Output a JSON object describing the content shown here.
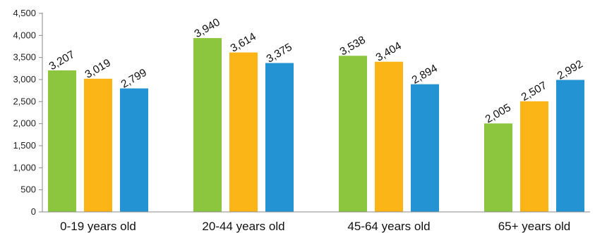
{
  "chart_data": {
    "type": "bar",
    "categories": [
      "0-19 years old",
      "20-44 years old",
      "45-64 years old",
      "65+ years old"
    ],
    "series": [
      {
        "values": [
          3207,
          3940,
          3538,
          2005
        ],
        "color": "#8cc63f"
      },
      {
        "values": [
          3019,
          3614,
          3404,
          2507
        ],
        "color": "#fbb516"
      },
      {
        "values": [
          2799,
          3375,
          2894,
          2992
        ],
        "color": "#2393d3"
      }
    ],
    "data_labels": [
      [
        "3,207",
        "3,940",
        "3,538",
        "2,005"
      ],
      [
        "3,019",
        "3,614",
        "3,404",
        "2,507"
      ],
      [
        "2,799",
        "3,375",
        "2,894",
        "2,992"
      ]
    ],
    "yticks": [
      0,
      500,
      1000,
      1500,
      2000,
      2500,
      3000,
      3500,
      4000,
      4500
    ],
    "ytick_labels": [
      "0",
      "500",
      "1,000",
      "1,500",
      "2,000",
      "2,500",
      "3,000",
      "3,500",
      "4,000",
      "4,500"
    ],
    "ylim": [
      0,
      4500
    ],
    "title": "",
    "xlabel": "",
    "ylabel": "",
    "grid": false,
    "legend": "none",
    "data_label_rotation_deg": -30
  }
}
